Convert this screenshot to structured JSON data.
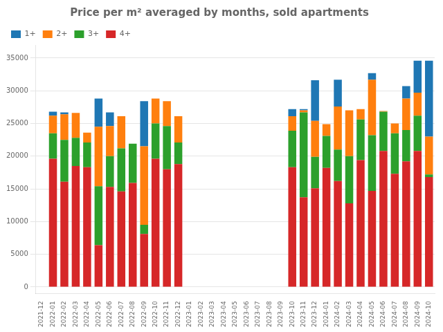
{
  "chart_data": {
    "type": "bar",
    "title": "Price per m² averaged by months, sold apartments",
    "categories": [
      "2021-12",
      "2022-01",
      "2022-02",
      "2022-03",
      "2022-04",
      "2022-05",
      "2022-06",
      "2022-07",
      "2022-08",
      "2022-09",
      "2022-10",
      "2022-11",
      "2022-12",
      "2023-01",
      "2023-02",
      "2023-03",
      "2023-04",
      "2023-05",
      "2023-06",
      "2023-07",
      "2023-08",
      "2023-09",
      "2023-10",
      "2023-11",
      "2023-12",
      "2024-01",
      "2024-02",
      "2024-03",
      "2024-04",
      "2024-05",
      "2024-06",
      "2024-07",
      "2024-08",
      "2024-09",
      "2024-10"
    ],
    "series": [
      {
        "name": "4+",
        "color": "#d62728",
        "values": [
          0,
          19600,
          16100,
          18500,
          18300,
          6400,
          15300,
          14600,
          15900,
          8100,
          19600,
          18000,
          18800,
          0,
          0,
          0,
          0,
          0,
          0,
          0,
          0,
          0,
          18300,
          13700,
          15100,
          18200,
          16200,
          12800,
          19400,
          14700,
          20800,
          17300,
          19200,
          20800,
          16800
        ]
      },
      {
        "name": "3+",
        "color": "#2ca02c",
        "values": [
          0,
          3900,
          6400,
          4300,
          3800,
          9000,
          4700,
          6600,
          6000,
          1400,
          5400,
          6600,
          3300,
          0,
          0,
          0,
          0,
          0,
          0,
          0,
          0,
          0,
          5600,
          13000,
          4800,
          4900,
          4800,
          7200,
          6200,
          8500,
          6000,
          6200,
          4800,
          5400,
          400
        ]
      },
      {
        "name": "2+",
        "color": "#ff7f0e",
        "values": [
          0,
          2700,
          3900,
          3800,
          1500,
          9100,
          4600,
          4900,
          0,
          12000,
          3800,
          3800,
          4000,
          0,
          0,
          0,
          0,
          0,
          0,
          0,
          0,
          0,
          2200,
          300,
          5500,
          1800,
          6600,
          7000,
          1600,
          8500,
          100,
          1500,
          4800,
          3500,
          5800
        ]
      },
      {
        "name": "1+",
        "color": "#1f77b4",
        "values": [
          0,
          600,
          300,
          0,
          0,
          4300,
          2100,
          0,
          0,
          6900,
          0,
          0,
          0,
          0,
          0,
          0,
          0,
          0,
          0,
          0,
          0,
          0,
          1100,
          200,
          6200,
          0,
          4100,
          0,
          0,
          1000,
          0,
          0,
          1900,
          4900,
          11600
        ]
      }
    ],
    "stacked": true,
    "ylim": [
      -1000,
      37000
    ],
    "yticks": [
      0,
      5000,
      10000,
      15000,
      20000,
      25000,
      30000,
      35000
    ],
    "grid": true,
    "legend": "upper left"
  }
}
